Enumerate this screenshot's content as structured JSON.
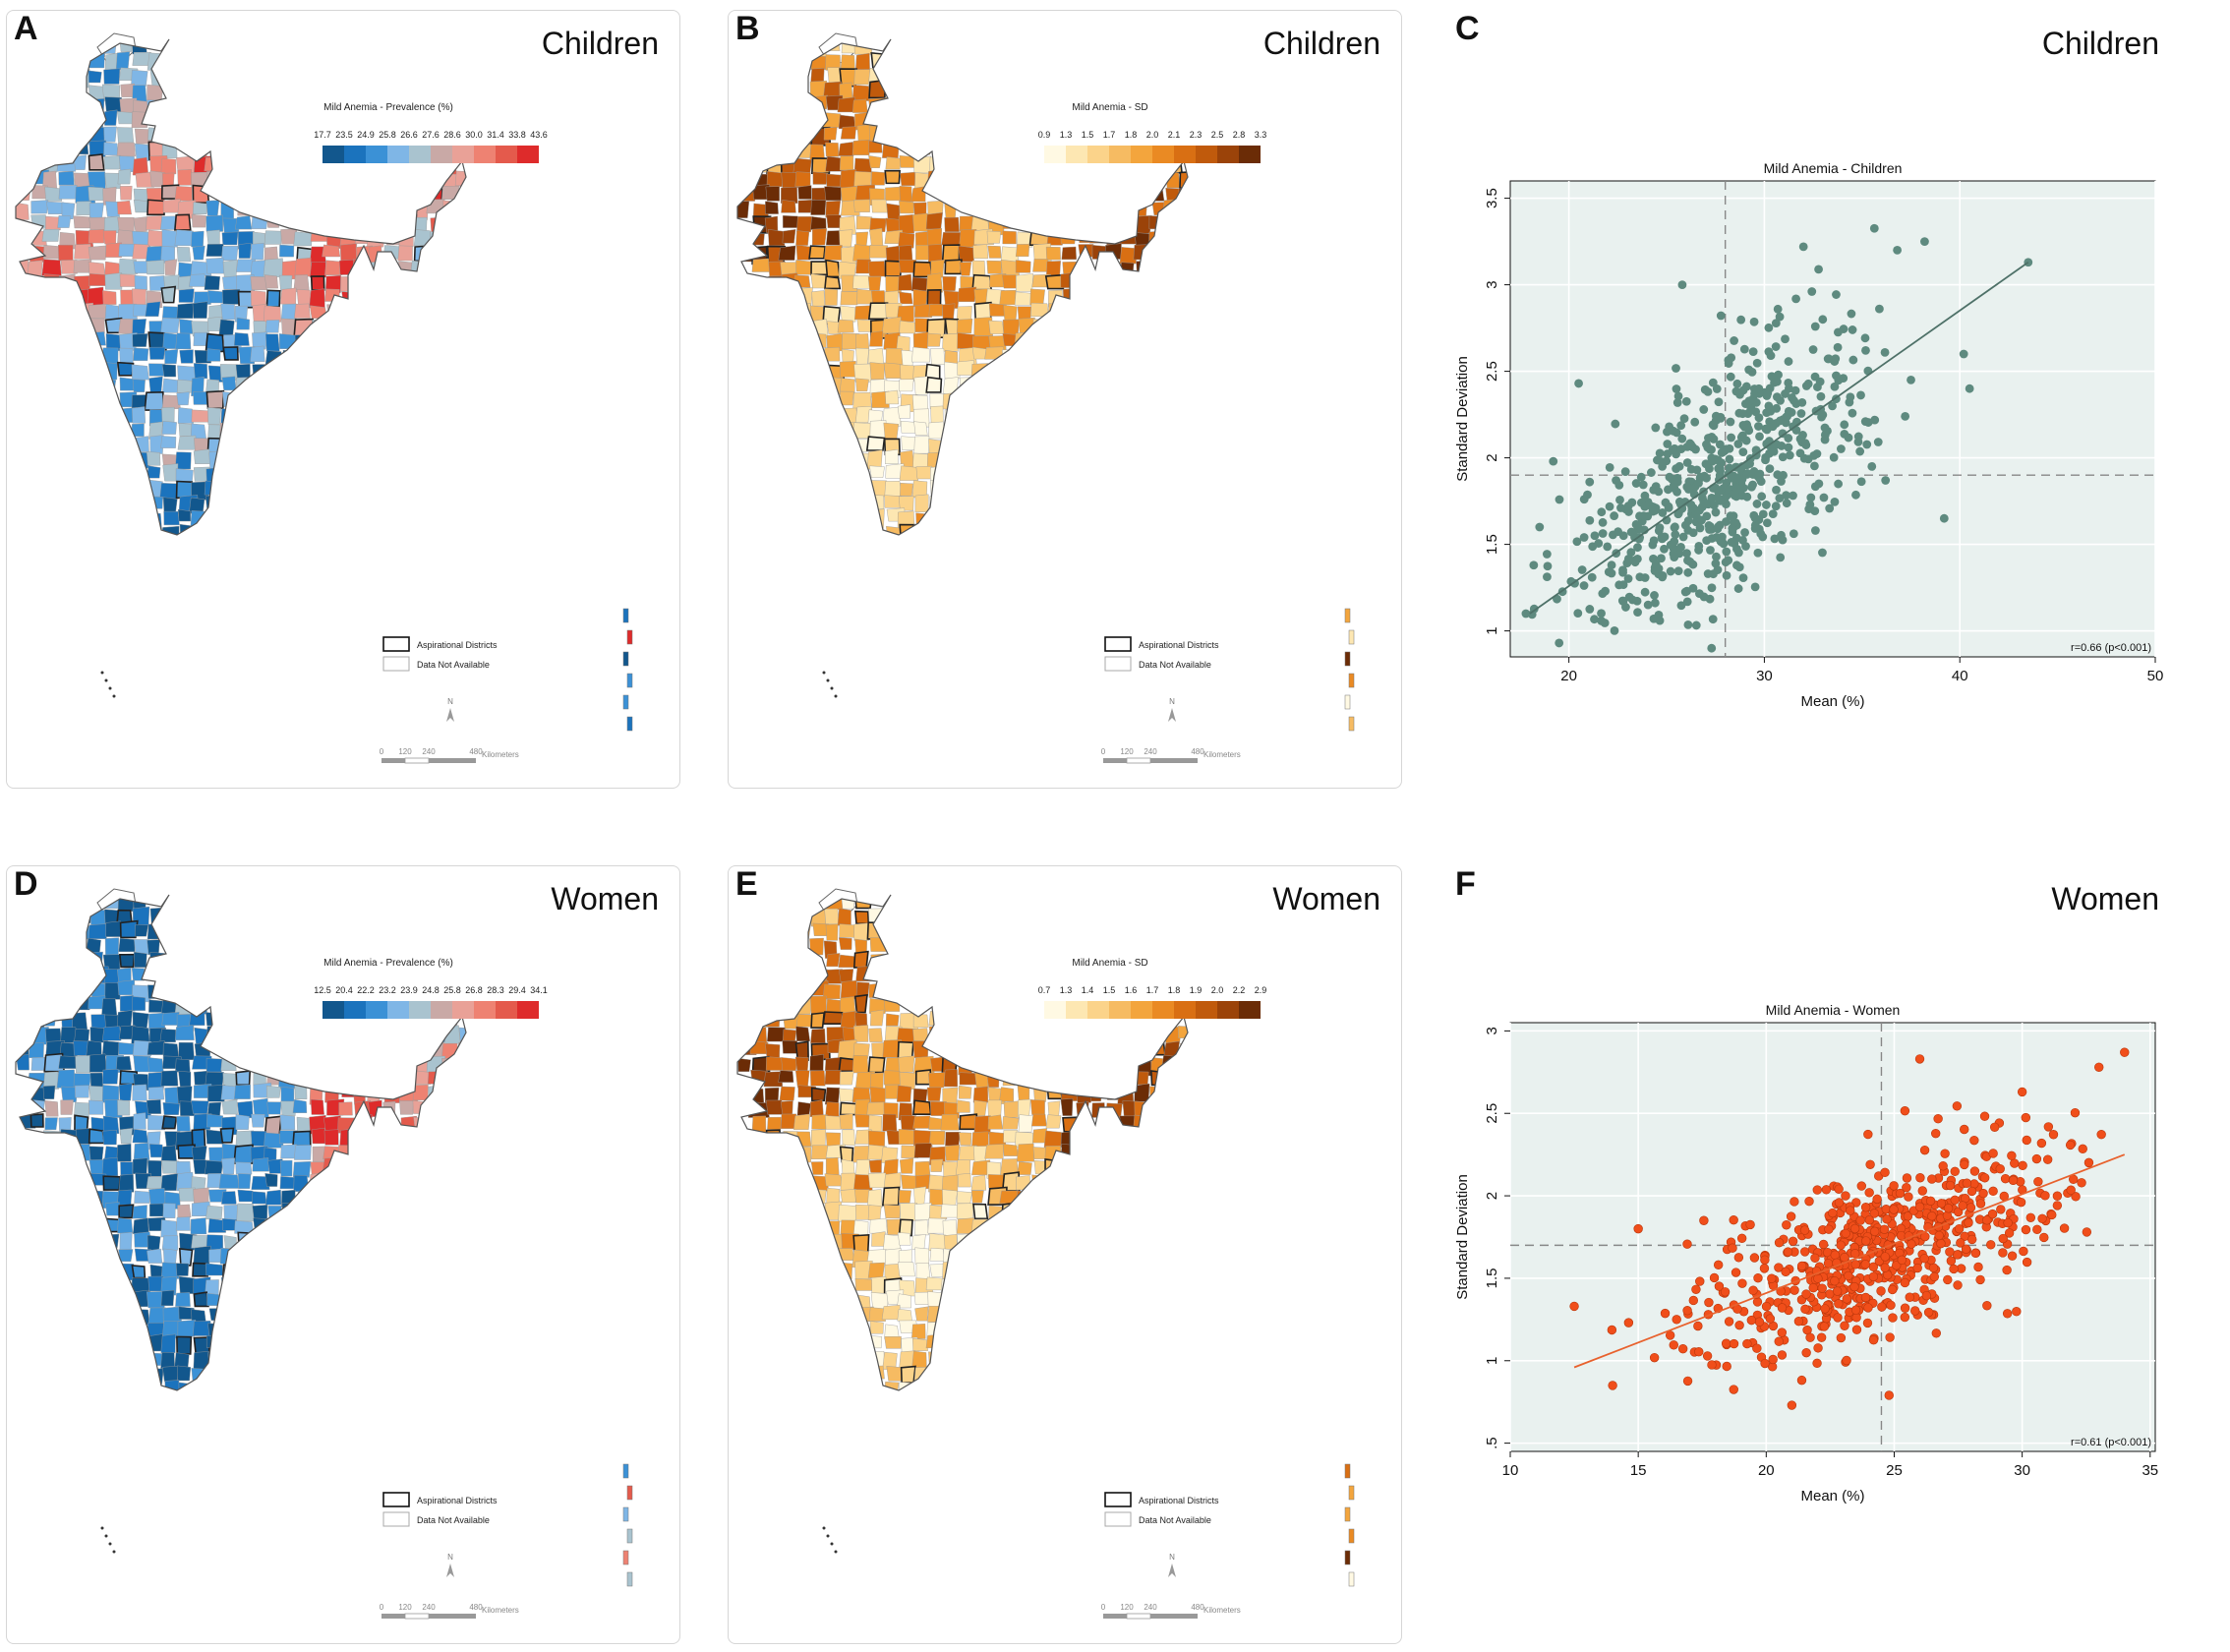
{
  "panels": {
    "A": {
      "letter": "A",
      "title": "Children",
      "legend_title": "Mild Anemia - Prevalence (%)",
      "ticks": [
        "17.7",
        "23.5",
        "24.9",
        "25.8",
        "26.6",
        "27.6",
        "28.6",
        "30.0",
        "31.4",
        "33.8",
        "43.6"
      ],
      "colors": [
        "#12578d",
        "#1b73bd",
        "#3b91d6",
        "#7fb6e6",
        "#a9c3cf",
        "#c9a9a6",
        "#e9a197",
        "#ee8272",
        "#e45a4c",
        "#de2b2b"
      ]
    },
    "B": {
      "letter": "B",
      "title": "Children",
      "legend_title": "Mild Anemia - SD",
      "ticks": [
        "0.9",
        "1.3",
        "1.5",
        "1.7",
        "1.8",
        "2.0",
        "2.1",
        "2.3",
        "2.5",
        "2.8",
        "3.3"
      ],
      "colors": [
        "#fff9e3",
        "#fde7b2",
        "#fbd38a",
        "#f6bb62",
        "#f3a53d",
        "#ea8a23",
        "#d96f13",
        "#c05a0c",
        "#9b4309",
        "#6b2c06"
      ]
    },
    "D": {
      "letter": "D",
      "title": "Women",
      "legend_title": "Mild Anemia - Prevalence (%)",
      "ticks": [
        "12.5",
        "20.4",
        "22.2",
        "23.2",
        "23.9",
        "24.8",
        "25.8",
        "26.8",
        "28.3",
        "29.4",
        "34.1"
      ],
      "colors": [
        "#12578d",
        "#1b73bd",
        "#3b91d6",
        "#7fb6e6",
        "#a9c3cf",
        "#c9a9a6",
        "#e9a197",
        "#ee8272",
        "#e45a4c",
        "#de2b2b"
      ]
    },
    "E": {
      "letter": "E",
      "title": "Women",
      "legend_title": "Mild Anemia - SD",
      "ticks": [
        "0.7",
        "1.3",
        "1.4",
        "1.5",
        "1.6",
        "1.7",
        "1.8",
        "1.9",
        "2.0",
        "2.2",
        "2.9"
      ],
      "colors": [
        "#fff9e3",
        "#fde7b2",
        "#fbd38a",
        "#f6bb62",
        "#f3a53d",
        "#ea8a23",
        "#d96f13",
        "#c05a0c",
        "#9b4309",
        "#6b2c06"
      ]
    },
    "C": {
      "letter": "C",
      "title": "Children"
    },
    "F": {
      "letter": "F",
      "title": "Women"
    }
  },
  "map_legend": {
    "aspirational": "Aspirational Districts",
    "not_available": "Data Not Available",
    "scale": [
      "0",
      "120",
      "240",
      "480"
    ],
    "scale_unit": "Kilometers",
    "north": "N"
  },
  "chart_data": [
    {
      "type": "scatter",
      "panel": "C",
      "title": "Mild Anemia - Children",
      "xlabel": "Mean (%)",
      "ylabel": "Standard Deviation",
      "xlim": [
        17,
        50
      ],
      "ylim": [
        0.85,
        3.6
      ],
      "xticks": [
        20,
        30,
        40,
        50
      ],
      "yticks": [
        1,
        1.5,
        2,
        2.5,
        3,
        3.5
      ],
      "xtick_labels": [
        "20",
        "30",
        "40",
        "50"
      ],
      "ytick_labels": [
        "1",
        "1.5",
        "2",
        "2.5",
        "3",
        "3.5"
      ],
      "ref_x": 28,
      "ref_y": 1.9,
      "fit": {
        "x1": 18,
        "y1": 1.1,
        "x2": 43.5,
        "y2": 3.13
      },
      "annotation": "r=0.66 (p<0.001)",
      "color": "#5e8a7f",
      "line_color": "#4e7168",
      "bg": "#e9f1ef",
      "points": [
        [
          17.8,
          1.1
        ],
        [
          18.2,
          1.38
        ],
        [
          18.5,
          1.6
        ],
        [
          19.2,
          1.98
        ],
        [
          19.5,
          0.93
        ],
        [
          20.5,
          2.43
        ],
        [
          43.5,
          3.13
        ],
        [
          40.5,
          2.4
        ],
        [
          40.2,
          2.6
        ],
        [
          39.2,
          1.65
        ],
        [
          38.2,
          3.25
        ],
        [
          36.8,
          3.2
        ],
        [
          37.5,
          2.45
        ],
        [
          32,
          3.22
        ],
        [
          25.8,
          3.0
        ],
        [
          35.5,
          1.95
        ],
        [
          36.2,
          1.87
        ],
        [
          27.3,
          0.9
        ]
      ]
    },
    {
      "type": "scatter",
      "panel": "F",
      "title": "Mild Anemia - Women",
      "xlabel": "Mean (%)",
      "ylabel": "Standard Deviation",
      "xlim": [
        10,
        35.2
      ],
      "ylim": [
        0.45,
        3.05
      ],
      "xticks": [
        10,
        15,
        20,
        25,
        30,
        35
      ],
      "yticks": [
        0.5,
        1,
        1.5,
        2,
        2.5,
        3
      ],
      "xtick_labels": [
        "10",
        "15",
        "20",
        "25",
        "30",
        "35"
      ],
      "ytick_labels": [
        ".5",
        "1",
        "1.5",
        "2",
        "2.5",
        "3"
      ],
      "ref_x": 24.5,
      "ref_y": 1.7,
      "fit": {
        "x1": 12.5,
        "y1": 0.96,
        "x2": 34,
        "y2": 2.25
      },
      "annotation": "r=0.61 (p<0.001)",
      "color": "#f04e1a",
      "line_color": "#e8612d",
      "bg": "#e9f1ef",
      "points": [
        [
          12.5,
          1.33
        ],
        [
          14,
          0.85
        ],
        [
          15,
          1.8
        ],
        [
          16.5,
          1.25
        ],
        [
          34,
          2.87
        ],
        [
          33,
          2.78
        ],
        [
          32,
          2.1
        ],
        [
          31,
          2.22
        ],
        [
          26,
          2.83
        ],
        [
          30,
          2.63
        ],
        [
          21,
          0.73
        ],
        [
          24.8,
          0.79
        ]
      ]
    }
  ]
}
